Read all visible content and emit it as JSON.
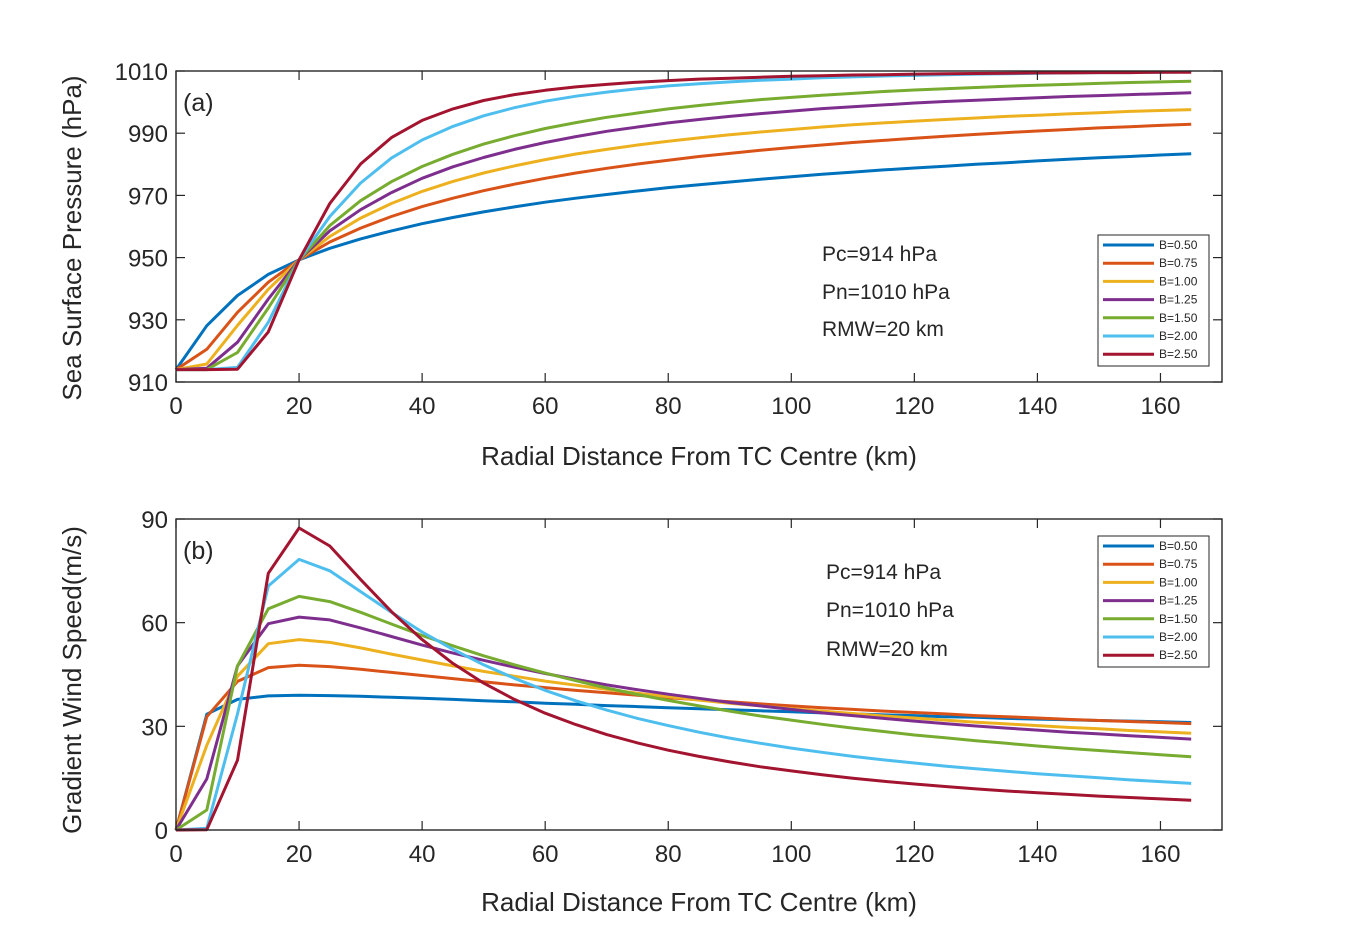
{
  "chart_data": [
    {
      "type": "line",
      "panel_label": "(a)",
      "xlabel": "Radial Distance From TC Centre (km)",
      "ylabel": "Sea Surface Pressure (hPa)",
      "xlim": [
        0,
        170
      ],
      "ylim": [
        910,
        1010
      ],
      "xticks": [
        0,
        20,
        40,
        60,
        80,
        100,
        120,
        140,
        160
      ],
      "yticks": [
        910,
        930,
        950,
        970,
        990,
        1010
      ],
      "grid": false,
      "legend_position": "bottom-right",
      "annotations": [
        "Pc=914 hPa",
        "Pn=1010 hPa",
        "RMW=20 km"
      ],
      "x": [
        0,
        5,
        10,
        15,
        20,
        25,
        30,
        35,
        40,
        45,
        50,
        55,
        60,
        65,
        70,
        75,
        80,
        85,
        90,
        95,
        100,
        105,
        110,
        115,
        120,
        125,
        130,
        135,
        140,
        145,
        150,
        155,
        160,
        165
      ],
      "series": [
        {
          "name": "B=0.50",
          "color": "#0072BD",
          "values": [
            914.0,
            928.1,
            937.8,
            944.6,
            949.3,
            953.0,
            956.0,
            958.6,
            960.9,
            962.9,
            964.7,
            966.3,
            967.8,
            969.1,
            970.3,
            971.4,
            972.5,
            973.4,
            974.3,
            975.2,
            976.0,
            976.8,
            977.5,
            978.2,
            978.8,
            979.4,
            980.0,
            980.5,
            981.1,
            981.6,
            982.1,
            982.5,
            983.0,
            983.4
          ]
        },
        {
          "name": "B=0.75",
          "color": "#D95319",
          "values": [
            914.0,
            920.5,
            932.4,
            942.1,
            949.3,
            955.0,
            959.5,
            963.2,
            966.4,
            969.1,
            971.5,
            973.6,
            975.5,
            977.2,
            978.7,
            980.1,
            981.3,
            982.5,
            983.5,
            984.5,
            985.4,
            986.2,
            987.0,
            987.7,
            988.4,
            989.0,
            989.6,
            990.2,
            990.7,
            991.2,
            991.7,
            992.1,
            992.5,
            992.9
          ]
        },
        {
          "name": "B=1.00",
          "color": "#EDB120",
          "values": [
            914.0,
            915.8,
            928.2,
            939.8,
            949.3,
            956.8,
            962.7,
            967.4,
            971.3,
            974.5,
            977.2,
            979.5,
            981.5,
            983.3,
            984.8,
            986.2,
            987.4,
            988.5,
            989.5,
            990.4,
            991.2,
            992.0,
            992.7,
            993.3,
            993.9,
            994.4,
            994.9,
            995.4,
            995.8,
            996.2,
            996.6,
            997.0,
            997.3,
            997.6
          ]
        },
        {
          "name": "B=1.25",
          "color": "#7E2F8E",
          "values": [
            914.0,
            914.4,
            922.8,
            936.7,
            949.3,
            958.6,
            965.4,
            970.9,
            975.5,
            979.2,
            982.2,
            984.8,
            987.0,
            988.9,
            990.6,
            992.0,
            993.3,
            994.4,
            995.4,
            996.3,
            997.1,
            997.9,
            998.5,
            999.1,
            999.7,
            1000.2,
            1000.6,
            1001.0,
            1001.4,
            1001.8,
            1002.1,
            1002.4,
            1002.7,
            1003.0
          ]
        },
        {
          "name": "B=1.50",
          "color": "#77AC30",
          "values": [
            914.0,
            914.0,
            919.5,
            933.8,
            949.3,
            960.3,
            968.3,
            974.4,
            979.3,
            983.2,
            986.5,
            989.2,
            991.5,
            993.4,
            995.1,
            996.5,
            997.8,
            998.9,
            999.9,
            1000.8,
            1001.5,
            1002.2,
            1002.8,
            1003.4,
            1003.9,
            1004.3,
            1004.7,
            1005.1,
            1005.4,
            1005.7,
            1006.0,
            1006.3,
            1006.5,
            1006.7
          ]
        },
        {
          "name": "B=2.00",
          "color": "#4DBEEE",
          "values": [
            914.0,
            914.0,
            914.7,
            929.2,
            949.3,
            963.2,
            974.0,
            982.0,
            987.8,
            992.2,
            995.6,
            998.2,
            1000.3,
            1001.9,
            1003.2,
            1004.3,
            1005.2,
            1005.9,
            1006.5,
            1007.0,
            1007.4,
            1007.8,
            1008.1,
            1008.4,
            1008.6,
            1008.8,
            1009.0,
            1009.1,
            1009.3,
            1009.4,
            1009.5,
            1009.5,
            1009.6,
            1009.7
          ]
        },
        {
          "name": "B=2.50",
          "color": "#A2142F",
          "values": [
            914.0,
            914.0,
            914.1,
            926.1,
            949.3,
            967.4,
            980.1,
            988.6,
            994.1,
            997.8,
            1000.5,
            1002.4,
            1003.8,
            1004.9,
            1005.7,
            1006.4,
            1006.9,
            1007.4,
            1007.7,
            1008.0,
            1008.3,
            1008.5,
            1008.7,
            1008.8,
            1009.0,
            1009.1,
            1009.2,
            1009.3,
            1009.4,
            1009.4,
            1009.5,
            1009.5,
            1009.6,
            1009.6
          ]
        }
      ]
    },
    {
      "type": "line",
      "panel_label": "(b)",
      "xlabel": "Radial Distance From TC Centre (km)",
      "ylabel": "Gradient Wind Speed(m/s)",
      "xlim": [
        0,
        170
      ],
      "ylim": [
        0,
        90
      ],
      "xticks": [
        0,
        20,
        40,
        60,
        80,
        100,
        120,
        140,
        160
      ],
      "yticks": [
        0,
        30,
        60,
        90
      ],
      "grid": false,
      "legend_position": "top-right",
      "annotations": [
        "Pc=914 hPa",
        "Pn=1010 hPa",
        "RMW=20 km"
      ],
      "x": [
        0,
        5,
        10,
        15,
        20,
        25,
        30,
        35,
        40,
        45,
        50,
        55,
        60,
        65,
        70,
        75,
        80,
        85,
        90,
        95,
        100,
        105,
        110,
        115,
        120,
        125,
        130,
        135,
        140,
        145,
        150,
        155,
        160,
        165
      ],
      "series": [
        {
          "name": "B=0.50",
          "color": "#0072BD",
          "values": [
            0,
            33.5,
            37.8,
            38.8,
            39.0,
            38.9,
            38.7,
            38.4,
            38.1,
            37.8,
            37.4,
            37.1,
            36.7,
            36.4,
            36.0,
            35.7,
            35.4,
            35.1,
            34.8,
            34.5,
            34.2,
            33.9,
            33.6,
            33.3,
            33.1,
            32.8,
            32.6,
            32.3,
            32.1,
            31.9,
            31.7,
            31.5,
            31.3,
            31.1
          ]
        },
        {
          "name": "B=0.75",
          "color": "#D95319",
          "values": [
            0,
            32.8,
            43.0,
            47.0,
            47.7,
            47.3,
            46.5,
            45.6,
            44.7,
            43.8,
            42.9,
            42.0,
            41.2,
            40.4,
            39.7,
            39.0,
            38.3,
            37.7,
            37.1,
            36.5,
            35.9,
            35.4,
            34.9,
            34.4,
            34.0,
            33.6,
            33.1,
            32.8,
            32.4,
            32.0,
            31.7,
            31.4,
            31.1,
            30.8
          ]
        },
        {
          "name": "B=1.00",
          "color": "#EDB120",
          "values": [
            0,
            24.5,
            44.5,
            53.9,
            55.1,
            54.3,
            52.7,
            50.9,
            49.2,
            47.5,
            45.9,
            44.5,
            43.1,
            41.9,
            40.7,
            39.6,
            38.6,
            37.6,
            36.7,
            35.9,
            35.1,
            34.4,
            33.7,
            33.0,
            32.4,
            31.8,
            31.2,
            30.7,
            30.2,
            29.7,
            29.3,
            28.8,
            28.4,
            28.0
          ]
        },
        {
          "name": "B=1.25",
          "color": "#7E2F8E",
          "values": [
            0,
            14.8,
            47.5,
            59.7,
            61.6,
            60.8,
            58.5,
            56.0,
            53.5,
            51.2,
            49.1,
            47.1,
            45.3,
            43.6,
            42.0,
            40.6,
            39.3,
            38.1,
            36.9,
            35.9,
            34.9,
            33.9,
            33.1,
            32.3,
            31.5,
            30.8,
            30.1,
            29.5,
            28.9,
            28.3,
            27.8,
            27.3,
            26.8,
            26.3
          ]
        },
        {
          "name": "B=1.50",
          "color": "#77AC30",
          "values": [
            0,
            5.8,
            47.5,
            64.0,
            67.6,
            66.1,
            63.0,
            59.6,
            56.3,
            53.3,
            50.4,
            47.8,
            45.4,
            43.2,
            41.1,
            39.2,
            37.5,
            35.9,
            34.4,
            33.0,
            31.8,
            30.6,
            29.5,
            28.5,
            27.5,
            26.7,
            25.8,
            25.1,
            24.3,
            23.6,
            23.0,
            22.4,
            21.8,
            21.2
          ]
        },
        {
          "name": "B=2.00",
          "color": "#4DBEEE",
          "values": [
            0,
            0.5,
            33.6,
            70.6,
            78.3,
            75.0,
            69.0,
            63.0,
            57.3,
            52.3,
            47.8,
            43.9,
            40.4,
            37.4,
            34.7,
            32.3,
            30.2,
            28.3,
            26.6,
            25.1,
            23.7,
            22.5,
            21.3,
            20.3,
            19.4,
            18.5,
            17.7,
            17.0,
            16.3,
            15.7,
            15.1,
            14.5,
            14.0,
            13.5
          ]
        },
        {
          "name": "B=2.50",
          "color": "#A2142F",
          "values": [
            0,
            0.1,
            20.2,
            74.3,
            87.4,
            82.2,
            72.5,
            63.2,
            55.1,
            48.2,
            42.5,
            37.8,
            33.8,
            30.5,
            27.6,
            25.2,
            23.1,
            21.3,
            19.7,
            18.3,
            17.1,
            16.0,
            15.0,
            14.1,
            13.3,
            12.6,
            11.9,
            11.3,
            10.8,
            10.3,
            9.8,
            9.4,
            9.0,
            8.6
          ]
        }
      ]
    }
  ]
}
